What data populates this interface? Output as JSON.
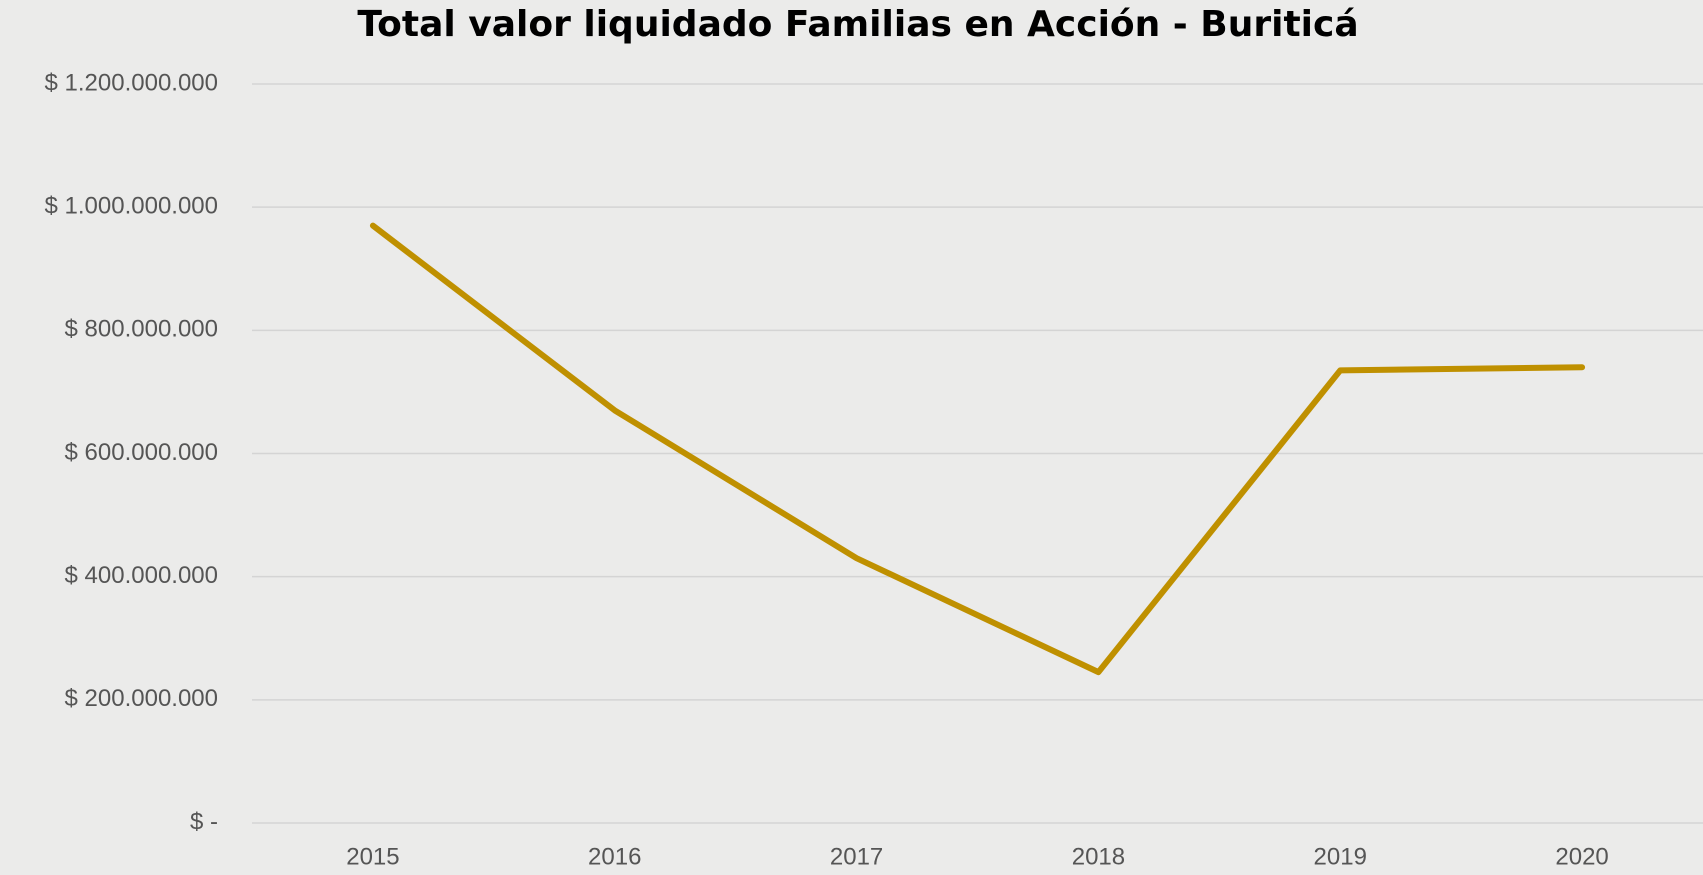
{
  "chart_data": {
    "type": "line",
    "title": "Total valor liquidado Familias en Acción - Buriticá",
    "categories": [
      "2015",
      "2016",
      "2017",
      "2018",
      "2019",
      "2020"
    ],
    "series": [
      {
        "name": "Total valor liquidado",
        "color": "#bf9000",
        "values": [
          970000000,
          670000000,
          430000000,
          245000000,
          735000000,
          740000000
        ]
      }
    ],
    "ylim": [
      0,
      1200000000
    ],
    "yticks": [
      {
        "value": 0,
        "label": "$ -"
      },
      {
        "value": 200000000,
        "label": "$ 200.000.000"
      },
      {
        "value": 400000000,
        "label": "$ 400.000.000"
      },
      {
        "value": 600000000,
        "label": "$ 600.000.000"
      },
      {
        "value": 800000000,
        "label": "$ 800.000.000"
      },
      {
        "value": 1000000000,
        "label": "$ 1.000.000.000"
      },
      {
        "value": 1200000000,
        "label": "$ 1.200.000.000"
      }
    ],
    "grid": true
  }
}
